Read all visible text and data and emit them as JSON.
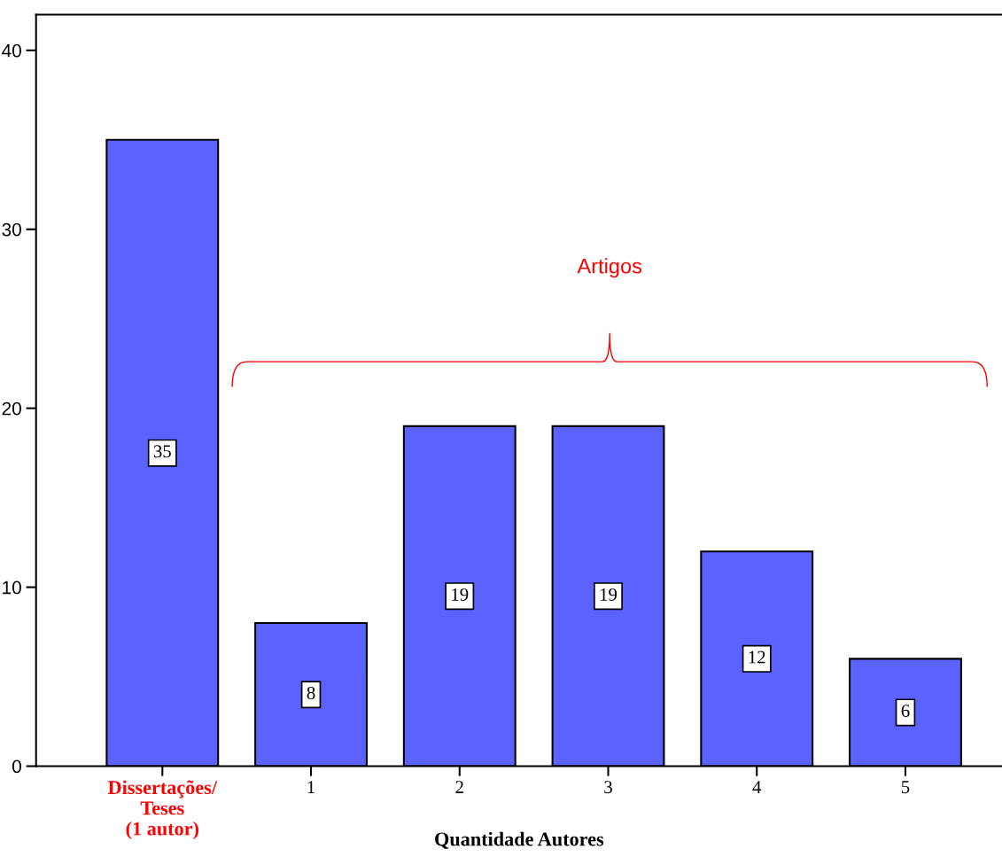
{
  "chart_data": {
    "type": "bar",
    "xlabel": "Quantidade Autores",
    "categories": [
      "Dissertações/\nTeses\n(1 autor)",
      "1",
      "2",
      "3",
      "4",
      "5"
    ],
    "values": [
      35,
      8,
      19,
      19,
      12,
      6
    ],
    "color": "#5b62ff",
    "ylim": [
      0,
      42
    ],
    "yticks": [
      0,
      10,
      20,
      30,
      40
    ],
    "grid": false,
    "data_labels": true,
    "annotations": [
      "Artigos"
    ]
  }
}
